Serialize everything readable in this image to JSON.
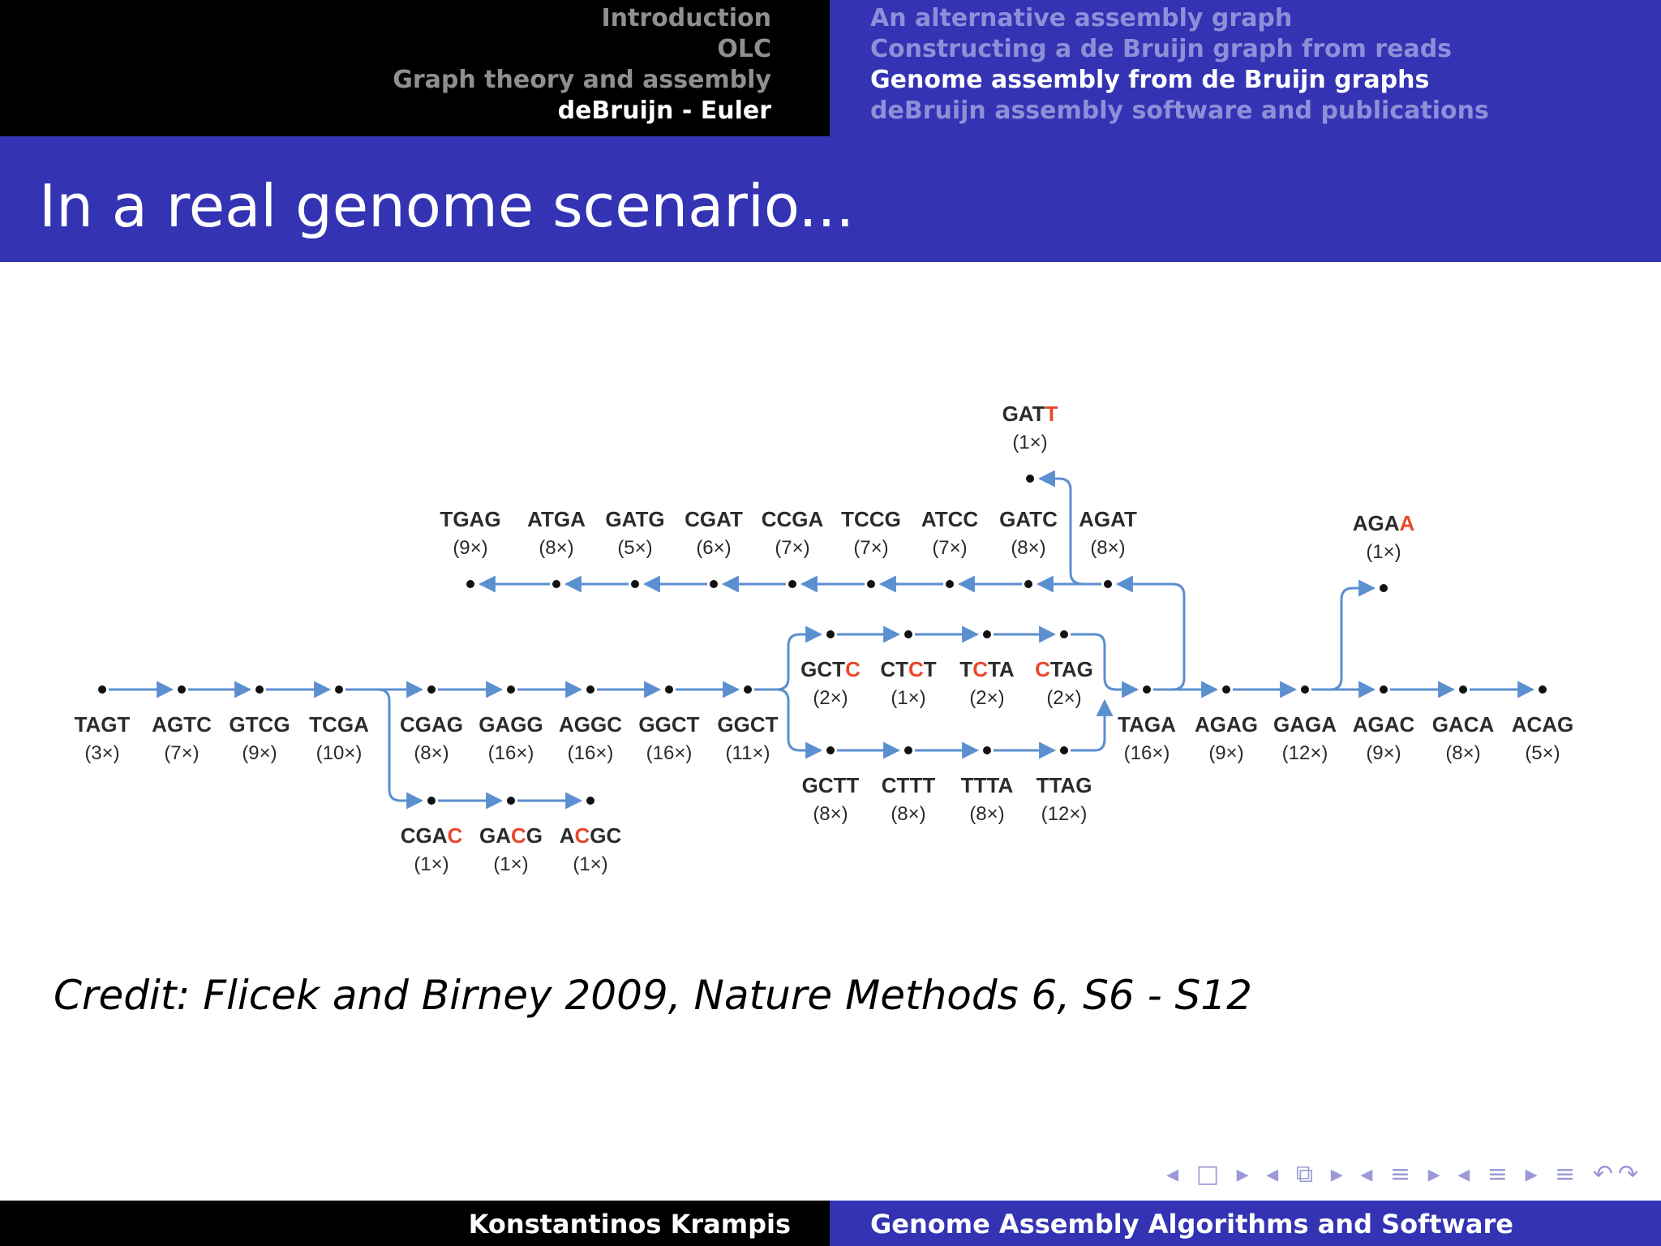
{
  "nav": {
    "sections": [
      {
        "label": "Introduction",
        "active": false
      },
      {
        "label": "OLC",
        "active": false
      },
      {
        "label": "Graph theory and assembly",
        "active": false
      },
      {
        "label": "deBruijn - Euler",
        "active": true
      }
    ],
    "subsections": [
      {
        "label": "An alternative assembly graph",
        "active": false
      },
      {
        "label": "Constructing a de Bruijn graph from reads",
        "active": false
      },
      {
        "label": "Genome assembly from de Bruijn graphs",
        "active": true
      },
      {
        "label": "deBruijn assembly software and publications",
        "active": false
      }
    ]
  },
  "slide_title": "In a real genome scenario...",
  "diagram": {
    "colors": {
      "edge": "#5b8fd0",
      "text": "#2b2b2b",
      "error_base": "#e8482c",
      "node": "#111111"
    },
    "nodes": [
      {
        "id": "TAGT",
        "label": "TAGT",
        "count": "(3×)"
      },
      {
        "id": "AGTC",
        "label": "AGTC",
        "count": "(7×)"
      },
      {
        "id": "GTCG",
        "label": "GTCG",
        "count": "(9×)"
      },
      {
        "id": "TCGA",
        "label": "TCGA",
        "count": "(10×)"
      },
      {
        "id": "CGAG",
        "label": "CGAG",
        "count": "(8×)"
      },
      {
        "id": "GAGG",
        "label": "GAGG",
        "count": "(16×)"
      },
      {
        "id": "AGGC",
        "label": "AGGC",
        "count": "(16×)"
      },
      {
        "id": "GGCT1",
        "label": "GGCT",
        "count": "(16×)"
      },
      {
        "id": "GGCT2",
        "label": "GGCT",
        "count": "(11×)"
      },
      {
        "id": "GCTC",
        "label": "GCTC",
        "count": "(2×)",
        "error": 3
      },
      {
        "id": "CTCT",
        "label": "CTCT",
        "count": "(1×)",
        "error": 2
      },
      {
        "id": "TCTA",
        "label": "TCTA",
        "count": "(2×)",
        "error": 1
      },
      {
        "id": "CTAG",
        "label": "CTAG",
        "count": "(2×)",
        "error": 0
      },
      {
        "id": "GCTT",
        "label": "GCTT",
        "count": "(8×)"
      },
      {
        "id": "CTTT",
        "label": "CTTT",
        "count": "(8×)"
      },
      {
        "id": "TTTA",
        "label": "TTTA",
        "count": "(8×)"
      },
      {
        "id": "TTAG",
        "label": "TTAG",
        "count": "(12×)"
      },
      {
        "id": "TAGA",
        "label": "TAGA",
        "count": "(16×)"
      },
      {
        "id": "AGAG",
        "label": "AGAG",
        "count": "(9×)"
      },
      {
        "id": "GAGA",
        "label": "GAGA",
        "count": "(12×)"
      },
      {
        "id": "AGAC",
        "label": "AGAC",
        "count": "(9×)"
      },
      {
        "id": "GACA",
        "label": "GACA",
        "count": "(8×)"
      },
      {
        "id": "ACAG",
        "label": "ACAG",
        "count": "(5×)"
      },
      {
        "id": "CGAC",
        "label": "CGAC",
        "count": "(1×)",
        "error": 3
      },
      {
        "id": "GACG",
        "label": "GACG",
        "count": "(1×)",
        "error": 2
      },
      {
        "id": "ACGC",
        "label": "ACGC",
        "count": "(1×)",
        "error": 1
      },
      {
        "id": "AGAA",
        "label": "AGAA",
        "count": "(1×)",
        "error": 3
      },
      {
        "id": "AGAT",
        "label": "AGAT",
        "count": "(8×)"
      },
      {
        "id": "GATC",
        "label": "GATC",
        "count": "(8×)"
      },
      {
        "id": "ATCC",
        "label": "ATCC",
        "count": "(7×)"
      },
      {
        "id": "TCCG",
        "label": "TCCG",
        "count": "(7×)"
      },
      {
        "id": "CCGA",
        "label": "CCGA",
        "count": "(7×)"
      },
      {
        "id": "CGAT",
        "label": "CGAT",
        "count": "(6×)"
      },
      {
        "id": "GATG",
        "label": "GATG",
        "count": "(5×)"
      },
      {
        "id": "ATGA",
        "label": "ATGA",
        "count": "(8×)"
      },
      {
        "id": "TGAG",
        "label": "TGAG",
        "count": "(9×)"
      },
      {
        "id": "GATT",
        "label": "GATT",
        "count": "(1×)",
        "error": 3
      }
    ]
  },
  "credit": "Credit: Flicek and Birney 2009, Nature Methods 6, S6 - S12",
  "nav_symbols": "◂ □ ▸ ◂ ⧉ ▸ ◂ ≡ ▸ ◂ ≡ ▸ ≡ ↶↷",
  "footer": {
    "author": "Konstantinos Krampis",
    "title": "Genome Assembly Algorithms and Software"
  }
}
